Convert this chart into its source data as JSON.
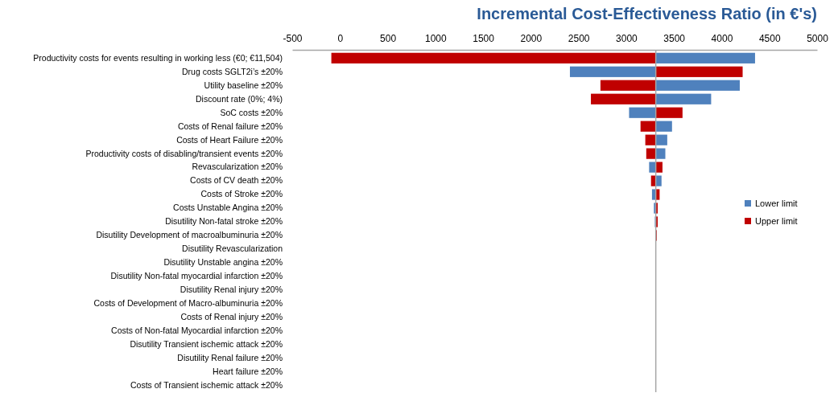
{
  "chart_data": {
    "type": "bar",
    "orientation": "horizontal",
    "title": "Incremental Cost-Effectiveness Ratio (in €'s)",
    "categories": [
      "Productivity costs for events resulting in working less (€0; €11,504)",
      "Drug costs SGLT2i’s ±20%",
      "Utility baseline ±20%",
      "Discount rate (0%; 4%)",
      "SoC costs ±20%",
      "Costs of Renal failure ±20%",
      "Costs of Heart Failure ±20%",
      "Productivity costs of disabling/transient events ±20%",
      "Revascularization ±20%",
      "Costs of CV death ±20%",
      "Costs of Stroke ±20%",
      "Costs Unstable Angina ±20%",
      "Disutility Non-fatal stroke ±20%",
      "Disutility Development of macroalbuminuria ±20%",
      "Disutility Revascularization",
      "Disutility Unstable angina ±20%",
      "Disutility Non-fatal myocardial infarction ±20%",
      "Disutility Renal injury ±20%",
      "Costs of Development of Macro-albuminuria ±20%",
      "Costs of Renal injury ±20%",
      "Costs of Non-fatal Myocardial infarction ±20%",
      "Disutility Transient ischemic attack ±20%",
      "Disutility Renal failure ±20%",
      "Heart failure ±20%",
      "Costs of Transient ischemic attack ±20%"
    ],
    "series": [
      {
        "name": "Lower limit",
        "color": "#4f81bd",
        "base": [
          3310,
          3310,
          3310,
          3310,
          3310,
          3310,
          3310,
          3310,
          3310,
          3310,
          3310,
          3310,
          3310,
          3310,
          3310,
          3310,
          null,
          null,
          null,
          null,
          null,
          null,
          null,
          null,
          null
        ],
        "values": [
          1040,
          -900,
          880,
          580,
          -280,
          170,
          120,
          100,
          -70,
          60,
          -40,
          -20,
          -10,
          -2,
          -2,
          -2,
          null,
          null,
          null,
          null,
          null,
          null,
          null,
          null,
          null
        ]
      },
      {
        "name": "Upper limit",
        "color": "#c00000",
        "base": [
          3310,
          3310,
          3310,
          3310,
          3310,
          3310,
          3310,
          3310,
          3310,
          3310,
          3310,
          3310,
          3310,
          3310,
          null,
          null,
          null,
          null,
          null,
          null,
          null,
          null,
          null,
          null,
          null
        ],
        "values": [
          -3400,
          910,
          -580,
          -680,
          280,
          -160,
          -110,
          -100,
          70,
          -50,
          40,
          20,
          20,
          10,
          null,
          null,
          null,
          null,
          null,
          null,
          null,
          null,
          null,
          null,
          null
        ]
      }
    ],
    "xlim": [
      -500,
      5000
    ],
    "xticks": [
      -500,
      0,
      500,
      1000,
      1500,
      2000,
      2500,
      3000,
      3500,
      4000,
      4500,
      5000
    ],
    "ref_lines": [
      {
        "axis": "x",
        "value": 3310,
        "color": "#a6a6a6"
      }
    ],
    "grid": false,
    "legend": "right"
  }
}
